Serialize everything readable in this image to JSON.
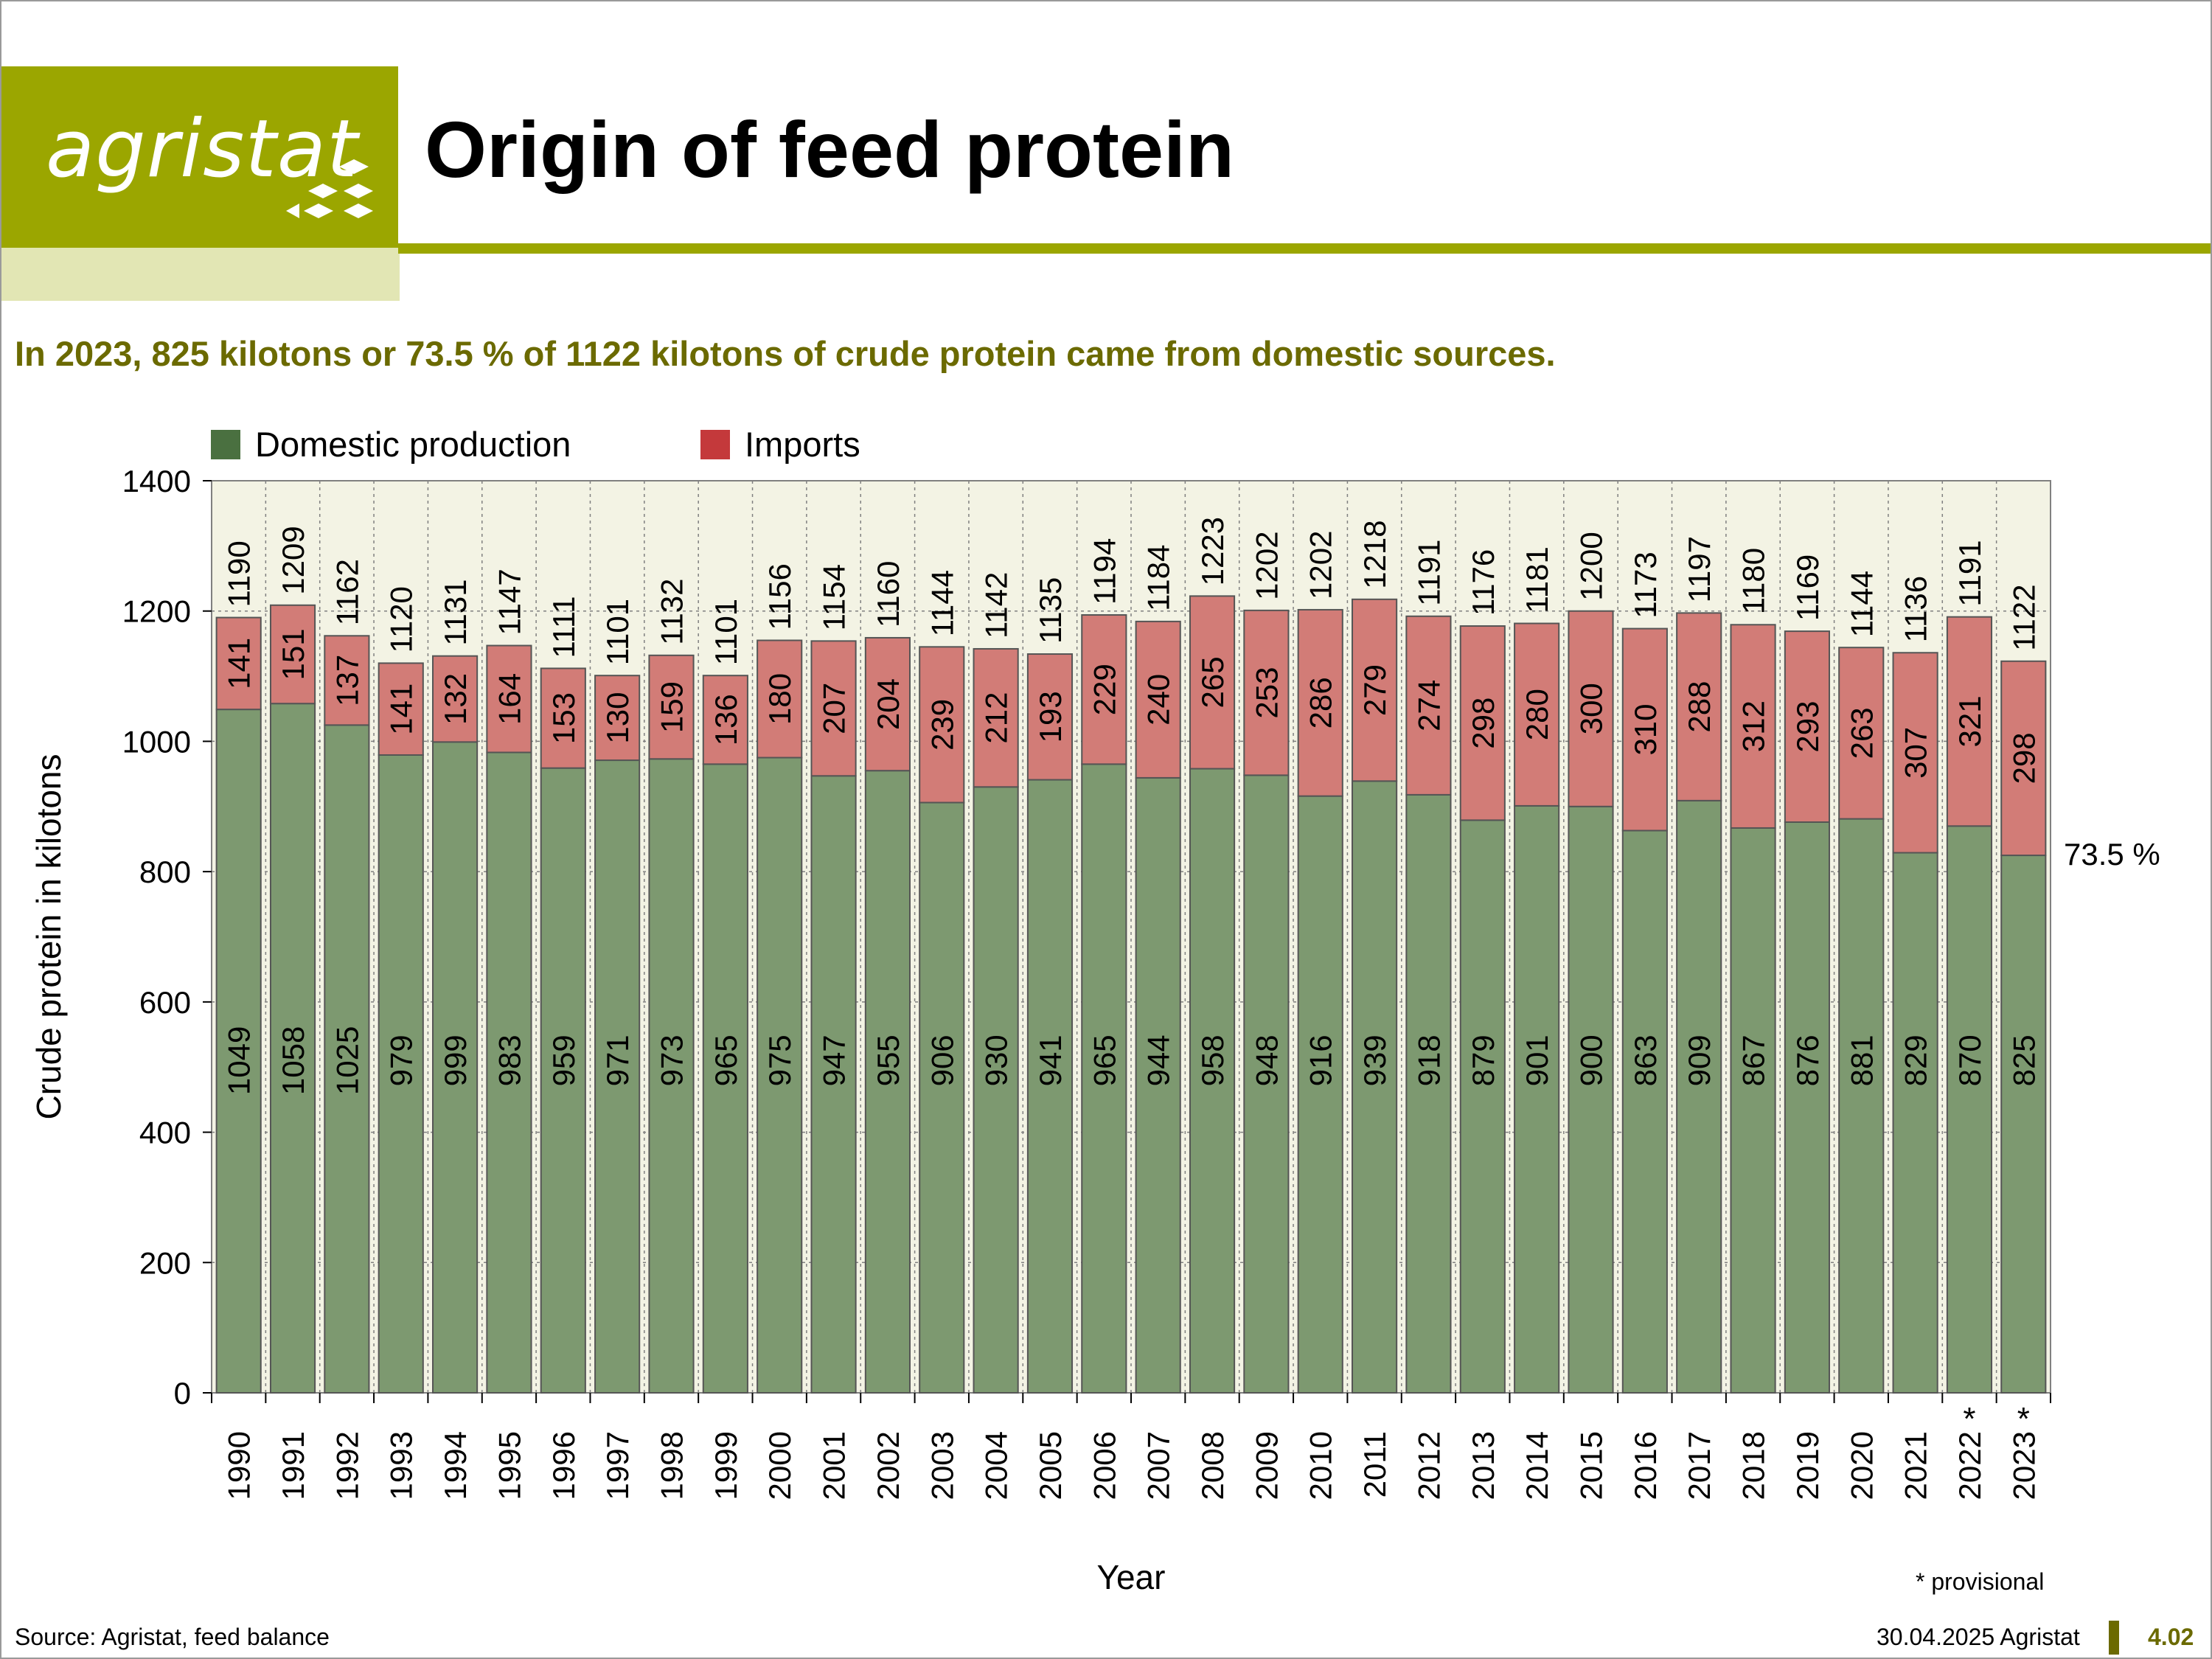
{
  "header": {
    "logo_text": "agristat",
    "title": "Origin of feed protein",
    "subtitle": "In 2023, 825 kilotons or 73.5 % of 1122 kilotons of crude protein came from domestic sources."
  },
  "colors": {
    "brand": "#9ba600",
    "brand_light": "#e2e6b4",
    "subtitle": "#6b6a00",
    "domestic": "#7d9970",
    "domestic_legend": "#4a7040",
    "imports": "#d27c77",
    "imports_legend": "#c4393b",
    "plot_bg": "#f3f3e4"
  },
  "icons": {
    "logo_mark": "diamond-cluster-icon"
  },
  "chart_data": {
    "type": "bar",
    "stacked": true,
    "categories": [
      "1990",
      "1991",
      "1992",
      "1993",
      "1994",
      "1995",
      "1996",
      "1997",
      "1998",
      "1999",
      "2000",
      "2001",
      "2002",
      "2003",
      "2004",
      "2005",
      "2006",
      "2007",
      "2008",
      "2009",
      "2010",
      "2011",
      "2012",
      "2013",
      "2014",
      "2015",
      "2016",
      "2017",
      "2018",
      "2019",
      "2020",
      "2021",
      "2022",
      "2023"
    ],
    "provisional_marker": [
      "",
      "",
      "",
      "",
      "",
      "",
      "",
      "",
      "",
      "",
      "",
      "",
      "",
      "",
      "",
      "",
      "",
      "",
      "",
      "",
      "",
      "",
      "",
      "",
      "",
      "",
      "",
      "",
      "",
      "",
      "",
      "",
      "*",
      "*"
    ],
    "series": [
      {
        "name": "Domestic production",
        "values": [
          1049,
          1058,
          1025,
          979,
          999,
          983,
          959,
          971,
          973,
          965,
          975,
          947,
          955,
          906,
          930,
          941,
          965,
          944,
          958,
          948,
          916,
          939,
          918,
          879,
          901,
          900,
          863,
          909,
          867,
          876,
          881,
          829,
          870,
          825
        ]
      },
      {
        "name": "Imports",
        "values": [
          141,
          151,
          137,
          141,
          132,
          164,
          153,
          130,
          159,
          136,
          180,
          207,
          204,
          239,
          212,
          193,
          229,
          240,
          265,
          253,
          286,
          279,
          274,
          298,
          280,
          300,
          310,
          288,
          312,
          293,
          263,
          307,
          321,
          298
        ]
      }
    ],
    "totals": [
      1190,
      1209,
      1162,
      1120,
      1131,
      1147,
      1111,
      1101,
      1132,
      1101,
      1156,
      1154,
      1160,
      1144,
      1142,
      1135,
      1194,
      1184,
      1223,
      1202,
      1202,
      1218,
      1191,
      1176,
      1181,
      1200,
      1173,
      1197,
      1180,
      1169,
      1144,
      1136,
      1191,
      1122
    ],
    "ylabel": "Crude protein in kilotons",
    "xlabel": "Year",
    "ylim": [
      0,
      1400
    ],
    "yticks": [
      0,
      200,
      400,
      600,
      800,
      1000,
      1200,
      1400
    ],
    "legend_placement": "top-left",
    "grid": true,
    "annotation": "73.5 %",
    "note": "* provisional"
  },
  "footer": {
    "source": "Source: Agristat, feed balance",
    "date": "30.04.2025 Agristat",
    "page": "4.02"
  }
}
